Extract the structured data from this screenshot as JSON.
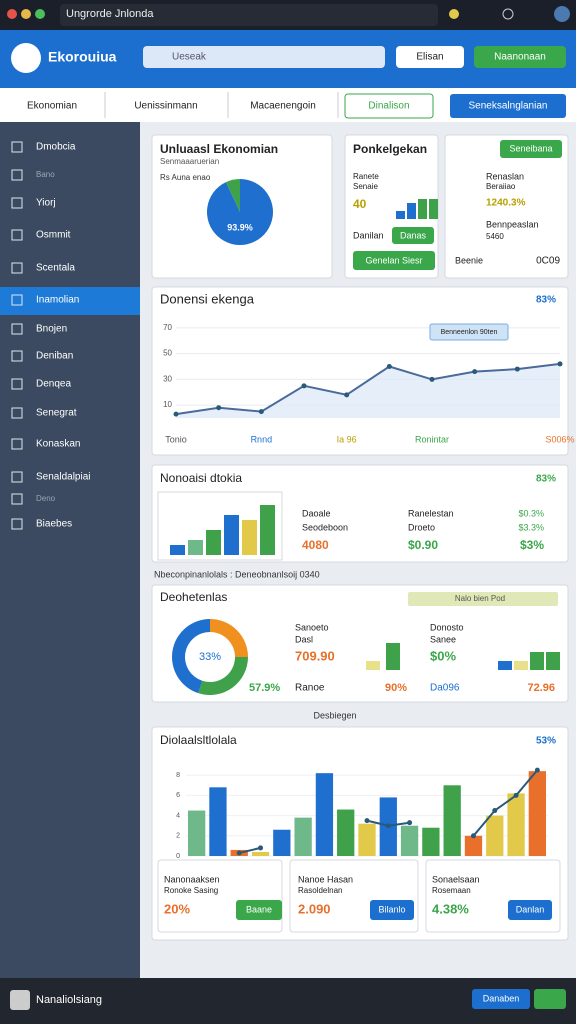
{
  "window": {
    "title": "Ungrorde Jnlonda"
  },
  "header": {
    "brand": "Ekorouiua",
    "search": "Ueseak",
    "button1": "Elisan",
    "button2": "Naanonaan"
  },
  "tabs": [
    "Ekonomian",
    "Uenissinmann",
    "Macaenengoin",
    "Dinalison",
    "Seneksalnglanian"
  ],
  "sidebar": {
    "items": [
      "Dmobcia",
      "Bano",
      "Yiorj",
      "Osmmit",
      "Scentala",
      "Inamolian",
      "Bnojen",
      "Deniban",
      "Denqea",
      "Senegrat",
      "Konaskan",
      "Senaldalpiai",
      "Deno",
      "Biaebes"
    ]
  },
  "card1": {
    "title": "Unluaasl Ekonomian",
    "subtitle": "Senmaaaruerian",
    "note": "Rs Auna enao",
    "pie": {
      "values": [
        93,
        7
      ],
      "colors": [
        "#1f6fcf",
        "#3fa14a"
      ],
      "label": "93.9%"
    }
  },
  "card2": {
    "title": "Ponkelgekan",
    "line1": "Ranete",
    "line2": "Senaie",
    "value": "40",
    "bars": {
      "values": [
        2,
        4,
        5,
        5
      ],
      "colors": [
        "#1f6fcf",
        "#1f6fcf",
        "#3fa14a",
        "#3fa14a"
      ]
    },
    "row": "Danilan",
    "button1": "Danas",
    "button2": "Genelan Siesr"
  },
  "card3": {
    "button": "Seneibana",
    "row1": "Renaslan",
    "row1_sub": "Beraiiao",
    "row2": "1240.3%",
    "row3": "Bennpeaslan",
    "row3_sub": "5460",
    "footer": "Beenie",
    "footer_value": "0C09"
  },
  "line_card": {
    "title": "Donensi ekenga",
    "badge": "83%",
    "tooltip": "Benneenlon 90ten",
    "chart": {
      "type": "line",
      "categories": [
        "Tonio",
        null,
        "Rnnd",
        null,
        "Ia 96",
        null,
        "Ronintar",
        null,
        null,
        "S006%"
      ],
      "values": [
        3,
        8,
        5,
        25,
        18,
        40,
        30,
        36,
        38,
        42
      ],
      "color": "#4a6a9a",
      "ylim": [
        0,
        80
      ],
      "yticks": [
        10,
        30,
        50,
        70
      ]
    }
  },
  "bar_card": {
    "title": "Nonoaisi dtokia",
    "badge": "83%",
    "chart": {
      "type": "bar",
      "values": [
        2,
        3,
        5,
        8,
        7,
        10
      ],
      "colors": [
        "#1f6fcf",
        "#6fb88a",
        "#3fa14a",
        "#1f6fcf",
        "#e3c94a",
        "#3fa14a"
      ]
    },
    "col1": [
      "Daoale",
      "Seodeboon",
      "4080"
    ],
    "col2": [
      "Ranelestan",
      "Droeto",
      "$0.90"
    ],
    "col3": [
      "$0.3%",
      "$3.3%",
      "$3%"
    ]
  },
  "caption1": "Nbeconpinanlolals : Deneobnanlsoij 0340",
  "donut_card": {
    "title": "Deohetenlas",
    "select": "Nalo bien Pod",
    "donut": {
      "values": [
        25,
        30,
        45
      ],
      "colors": [
        "#f0901e",
        "#3fa14a",
        "#1f6fcf"
      ],
      "center": "33%",
      "label": "57.9%"
    },
    "mid": {
      "line1": "Sanoeto",
      "line2": "Dasl",
      "value": "709.90",
      "bars": {
        "values": [
          1,
          3
        ],
        "colors": [
          "#e8e08a",
          "#3fa14a"
        ]
      },
      "footer": "Ranoe",
      "footer_value": "90%"
    },
    "right": {
      "line1": "Donosto",
      "line2": "Sanee",
      "value": "$0%",
      "bars": {
        "values": [
          1,
          1,
          2,
          2
        ],
        "colors": [
          "#1f6fcf",
          "#e8e08a",
          "#3fa14a",
          "#3fa14a"
        ]
      },
      "footer": "Da096",
      "footer_value": "72.96"
    }
  },
  "caption2": "Desbiegen",
  "big_card": {
    "title": "Diolaalsltlolala",
    "badge": "53%",
    "chart": {
      "type": "bar",
      "ylim": [
        0,
        10
      ],
      "yticks": [
        0,
        2,
        4,
        6,
        8
      ],
      "values": [
        4.5,
        6.8,
        0.6,
        0.4,
        2.6,
        3.8,
        8.2,
        4.6,
        3.2,
        5.8,
        3.0,
        2.8,
        7.0,
        2.0,
        4.0,
        6.2,
        8.4
      ],
      "colors": [
        "#6fb88a",
        "#1f6fcf",
        "#e8702a",
        "#e3c94a",
        "#1f6fcf",
        "#6fb88a",
        "#1f6fcf",
        "#3fa14a",
        "#e3c94a",
        "#1f6fcf",
        "#6fb88a",
        "#3fa14a",
        "#3fa14a",
        "#e8702a",
        "#e3c94a",
        "#e3c94a",
        "#e8702a"
      ],
      "line": {
        "color": "#2a5a7a",
        "values": [
          null,
          null,
          0.3,
          0.8,
          null,
          null,
          null,
          null,
          3.5,
          3.0,
          3.3,
          null,
          null,
          2.0,
          4.5,
          6.0,
          8.5
        ]
      }
    },
    "subcards": [
      {
        "title": "Nanonaaksen",
        "sub": "Ronoke Sasing",
        "value": "20%",
        "button": "Baane"
      },
      {
        "title": "Nanoe Hasan",
        "sub": "Rasoldelnan",
        "value": "2.090",
        "button": "Bilanlo"
      },
      {
        "title": "Sonaelsaan",
        "sub": "Rosemaan",
        "value": "4.38%",
        "button": "Danlan"
      }
    ]
  },
  "footer": {
    "title": "Nanaliolsiang",
    "button": "Danaben"
  }
}
